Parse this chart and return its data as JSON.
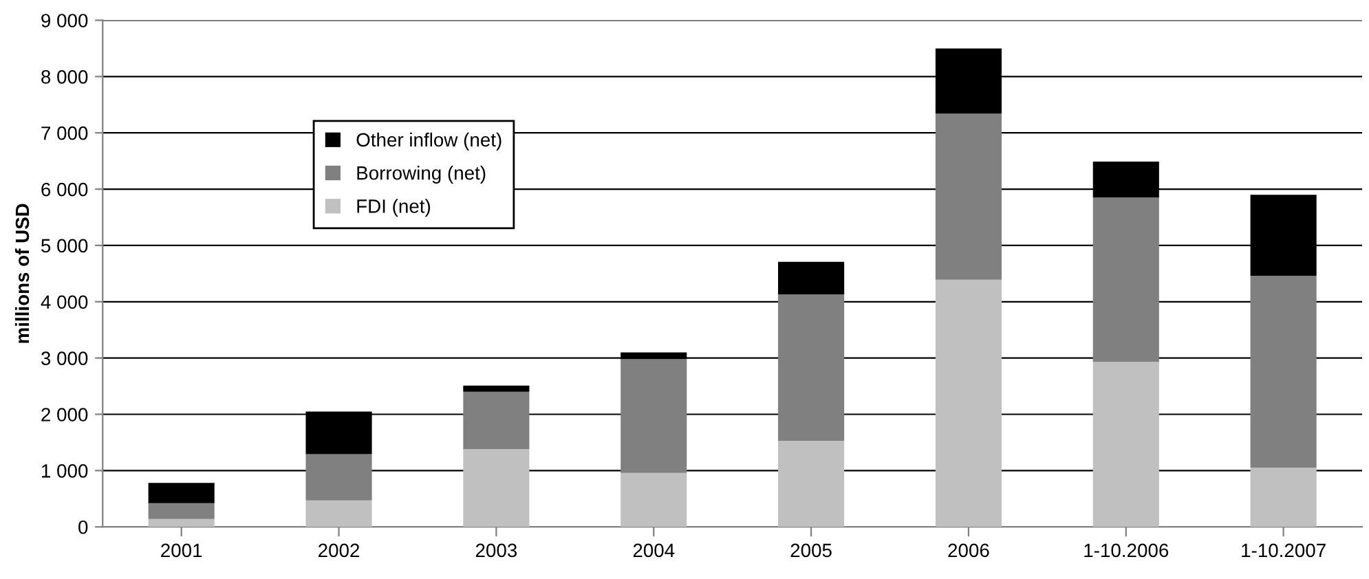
{
  "chart_data": {
    "type": "bar",
    "stacked": true,
    "ylabel": "millions of USD",
    "categories": [
      "2001",
      "2002",
      "2003",
      "2004",
      "2005",
      "2006",
      "1-10.2006",
      "1-10.2007"
    ],
    "series": [
      {
        "name": "FDI (net)",
        "color": "#c0c0c0",
        "values": [
          140,
          470,
          1380,
          960,
          1530,
          4390,
          2930,
          1050
        ]
      },
      {
        "name": "Borrowing (net)",
        "color": "#808080",
        "values": [
          280,
          820,
          1020,
          2020,
          2600,
          2950,
          2920,
          3410
        ]
      },
      {
        "name": "Other inflow (net)",
        "color": "#000000",
        "values": [
          360,
          760,
          110,
          120,
          580,
          1160,
          640,
          1440
        ]
      }
    ],
    "ylim": [
      0,
      9000
    ],
    "yticks": [
      {
        "value": 0,
        "label": "0"
      },
      {
        "value": 1000,
        "label": "1 000"
      },
      {
        "value": 2000,
        "label": "2 000"
      },
      {
        "value": 3000,
        "label": "3 000"
      },
      {
        "value": 4000,
        "label": "4 000"
      },
      {
        "value": 5000,
        "label": "5 000"
      },
      {
        "value": 6000,
        "label": "6 000"
      },
      {
        "value": 7000,
        "label": "7 000"
      },
      {
        "value": 8000,
        "label": "8 000"
      },
      {
        "value": 9000,
        "label": "9 000"
      }
    ],
    "grid": "y",
    "legend": "top left"
  }
}
